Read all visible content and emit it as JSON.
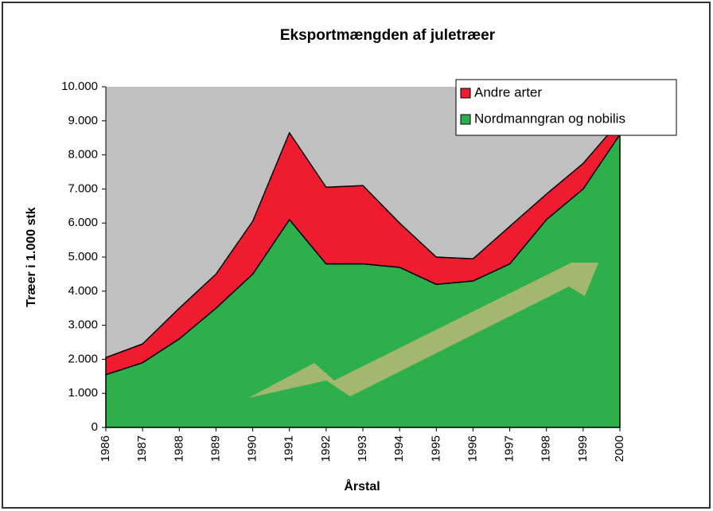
{
  "chart_data": {
    "type": "area",
    "stacked": true,
    "title": "Eksportmængden af juletræer",
    "x_label": "Årstal",
    "y_label": "Træer i 1.000 stk",
    "categories": [
      "1986",
      "1987",
      "1988",
      "1989",
      "1990",
      "1991",
      "1992",
      "1993",
      "1994",
      "1995",
      "1996",
      "1997",
      "1998",
      "1999",
      "2000"
    ],
    "series": [
      {
        "name": "Nordmanngran og nobilis",
        "color": "#2db04b",
        "values": [
          1550,
          1900,
          2600,
          3500,
          4500,
          6100,
          4800,
          4800,
          4700,
          4200,
          4300,
          4800,
          6100,
          7000,
          8600
        ]
      },
      {
        "name": "Andre arter",
        "color": "#ee1c2e",
        "values": [
          500,
          550,
          900,
          1000,
          1550,
          2550,
          2250,
          2300,
          1300,
          800,
          650,
          1100,
          750,
          750,
          400
        ]
      }
    ],
    "ylim": [
      0,
      10000
    ],
    "yticks": [
      0,
      {
        "value": 1000,
        "label": "1.000"
      },
      {
        "value": 2000,
        "label": "2.000"
      },
      {
        "value": 3000,
        "label": "3.000"
      },
      {
        "value": 4000,
        "label": "4.000"
      },
      {
        "value": 5000,
        "label": "5.000"
      },
      {
        "value": 6000,
        "label": "6.000"
      },
      {
        "value": 7000,
        "label": "7.000"
      },
      {
        "value": 8000,
        "label": "8.000"
      },
      {
        "value": 9000,
        "label": "9.000"
      },
      {
        "value": 10000,
        "label": "10.000"
      }
    ],
    "plot_background": "#c0c0c0"
  }
}
